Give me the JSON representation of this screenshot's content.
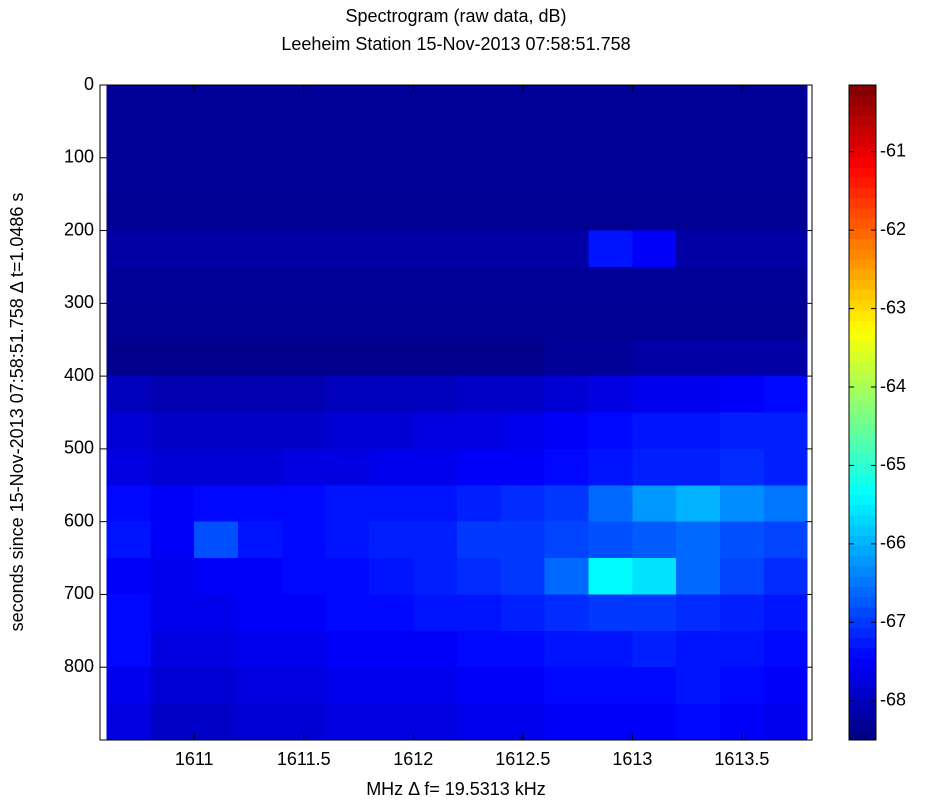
{
  "chart_data": {
    "type": "heatmap",
    "title": "Spectrogram (raw data, dB)",
    "subtitle": "Leeheim Station 15-Nov-2013 07:58:51.758",
    "x_label": "MHz   Δ f= 19.5313 kHz",
    "y_label": "seconds since 15-Nov-2013 07:58:51.758 Δ t=1.0486 s",
    "xlim": [
      1610.57,
      1613.82
    ],
    "xticks": [
      1611,
      1611.5,
      1612,
      1612.5,
      1613,
      1613.5
    ],
    "ylim": [
      0,
      900
    ],
    "yticks": [
      0,
      100,
      200,
      300,
      400,
      500,
      600,
      700,
      800
    ],
    "y_reversed": true,
    "clim": [
      -68.5,
      -60.15
    ],
    "cticks": [
      -61,
      -62,
      -63,
      -64,
      -65,
      -66,
      -67,
      -68
    ],
    "colormap": "jet",
    "xbins": [
      1610.6,
      1610.8,
      1611,
      1611.2,
      1611.4,
      1611.6,
      1611.8,
      1612,
      1612.2,
      1612.4,
      1612.6,
      1612.8,
      1613,
      1613.2,
      1613.4,
      1613.6,
      1613.8
    ],
    "ybins": [
      0,
      50,
      100,
      150,
      200,
      250,
      300,
      350,
      400,
      450,
      500,
      550,
      600,
      650,
      700,
      750,
      800,
      850,
      900
    ],
    "z": [
      [
        -68.3,
        -68.3,
        -68.3,
        -68.3,
        -68.3,
        -68.3,
        -68.3,
        -68.3,
        -68.3,
        -68.3,
        -68.3,
        -68.3,
        -68.3,
        -68.3,
        -68.3,
        -68.3
      ],
      [
        -68.3,
        -68.3,
        -68.3,
        -68.3,
        -68.3,
        -68.3,
        -68.3,
        -68.3,
        -68.3,
        -68.3,
        -68.3,
        -68.3,
        -68.3,
        -68.3,
        -68.3,
        -68.3
      ],
      [
        -68.3,
        -68.3,
        -68.3,
        -68.3,
        -68.3,
        -68.3,
        -68.3,
        -68.3,
        -68.3,
        -68.3,
        -68.3,
        -68.3,
        -68.3,
        -68.3,
        -68.3,
        -68.3
      ],
      [
        -68.35,
        -68.35,
        -68.35,
        -68.35,
        -68.35,
        -68.35,
        -68.35,
        -68.35,
        -68.35,
        -68.35,
        -68.35,
        -68.35,
        -68.35,
        -68.35,
        -68.35,
        -68.35
      ],
      [
        -68.2,
        -68.2,
        -68.2,
        -68.2,
        -68.2,
        -68.2,
        -68.2,
        -68.2,
        -68.2,
        -68.2,
        -68.2,
        -67.3,
        -67.5,
        -68.2,
        -68.2,
        -68.2
      ],
      [
        -68.3,
        -68.3,
        -68.3,
        -68.3,
        -68.3,
        -68.3,
        -68.3,
        -68.3,
        -68.3,
        -68.3,
        -68.3,
        -68.3,
        -68.3,
        -68.3,
        -68.3,
        -68.3
      ],
      [
        -68.35,
        -68.35,
        -68.35,
        -68.35,
        -68.35,
        -68.35,
        -68.35,
        -68.35,
        -68.35,
        -68.35,
        -68.35,
        -68.35,
        -68.35,
        -68.35,
        -68.35,
        -68.35
      ],
      [
        -68.4,
        -68.4,
        -68.4,
        -68.4,
        -68.4,
        -68.4,
        -68.4,
        -68.4,
        -68.4,
        -68.4,
        -68.3,
        -68.3,
        -68.2,
        -68.2,
        -68.2,
        -68.2
      ],
      [
        -68.0,
        -68.1,
        -68.1,
        -68.1,
        -68.1,
        -68.0,
        -68.0,
        -68.0,
        -67.9,
        -67.9,
        -67.8,
        -67.7,
        -67.6,
        -67.6,
        -67.5,
        -67.4
      ],
      [
        -67.8,
        -67.9,
        -67.9,
        -67.9,
        -67.9,
        -67.8,
        -67.8,
        -67.7,
        -67.7,
        -67.6,
        -67.5,
        -67.4,
        -67.3,
        -67.3,
        -67.2,
        -67.2
      ],
      [
        -67.7,
        -67.8,
        -67.8,
        -67.8,
        -67.7,
        -67.7,
        -67.6,
        -67.6,
        -67.5,
        -67.5,
        -67.4,
        -67.3,
        -67.2,
        -67.2,
        -67.1,
        -67.2
      ],
      [
        -67.4,
        -67.5,
        -67.4,
        -67.4,
        -67.4,
        -67.3,
        -67.3,
        -67.3,
        -67.2,
        -67.1,
        -67.0,
        -66.6,
        -66.2,
        -66.0,
        -66.3,
        -66.5
      ],
      [
        -67.3,
        -67.5,
        -66.8,
        -67.3,
        -67.4,
        -67.3,
        -67.2,
        -67.2,
        -67.0,
        -67.0,
        -66.9,
        -66.8,
        -66.7,
        -66.6,
        -66.8,
        -66.9
      ],
      [
        -67.5,
        -67.6,
        -67.5,
        -67.5,
        -67.4,
        -67.4,
        -67.3,
        -67.2,
        -67.1,
        -67.0,
        -66.6,
        -65.4,
        -65.6,
        -66.6,
        -66.9,
        -67.1
      ],
      [
        -67.4,
        -67.6,
        -67.6,
        -67.5,
        -67.5,
        -67.4,
        -67.4,
        -67.3,
        -67.3,
        -67.2,
        -67.1,
        -67.0,
        -67.0,
        -67.1,
        -67.2,
        -67.3
      ],
      [
        -67.4,
        -67.7,
        -67.7,
        -67.6,
        -67.6,
        -67.5,
        -67.5,
        -67.5,
        -67.4,
        -67.4,
        -67.3,
        -67.3,
        -67.2,
        -67.3,
        -67.3,
        -67.4
      ],
      [
        -67.6,
        -67.8,
        -67.8,
        -67.7,
        -67.7,
        -67.6,
        -67.6,
        -67.6,
        -67.5,
        -67.5,
        -67.4,
        -67.4,
        -67.4,
        -67.3,
        -67.4,
        -67.5
      ],
      [
        -67.7,
        -67.9,
        -67.9,
        -67.8,
        -67.8,
        -67.7,
        -67.7,
        -67.7,
        -67.6,
        -67.6,
        -67.5,
        -67.5,
        -67.5,
        -67.4,
        -67.5,
        -67.6
      ]
    ]
  }
}
